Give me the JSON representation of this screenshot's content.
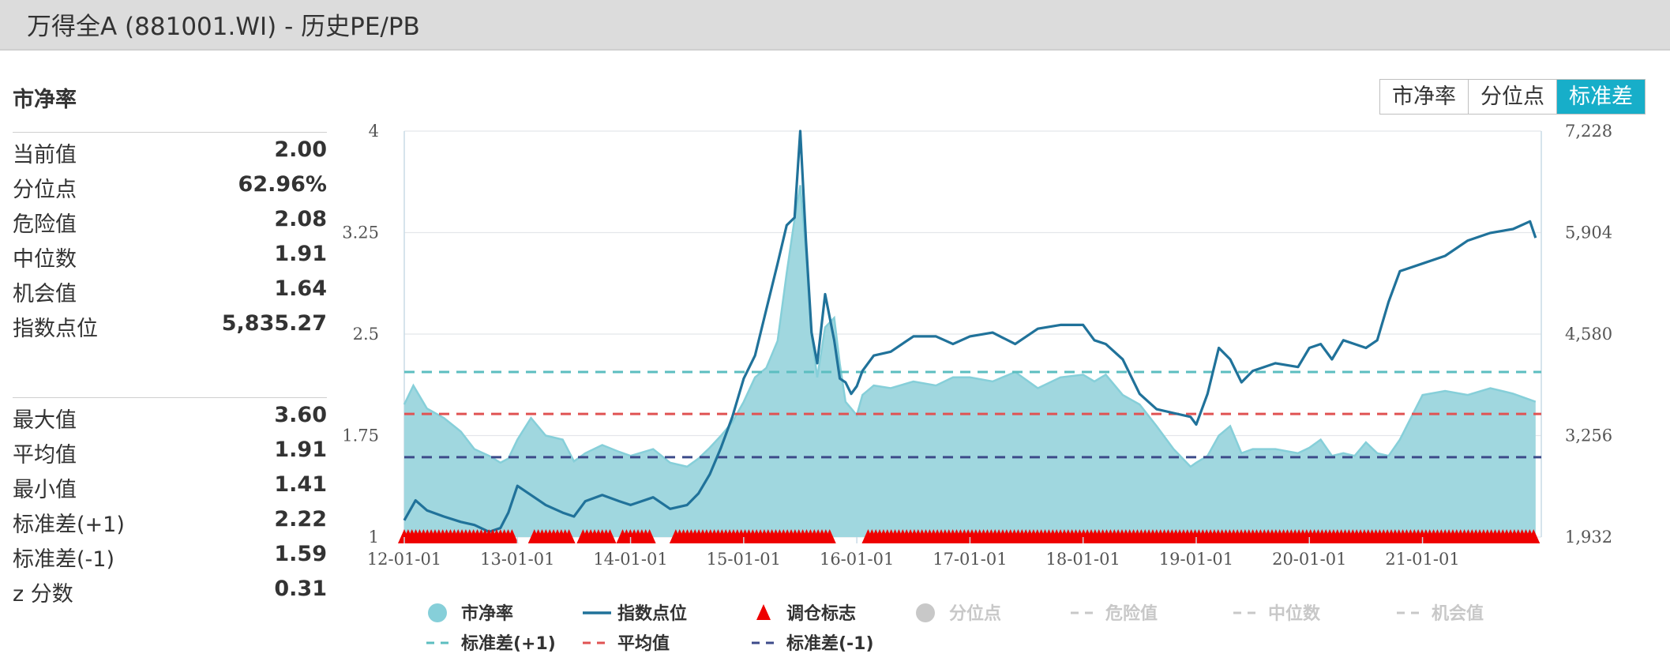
{
  "header": {
    "title": "万得全A (881001.WI) - 历史PE/PB"
  },
  "panel": {
    "title": "市净率",
    "stats_top": [
      {
        "label": "当前值",
        "value": "2.00"
      },
      {
        "label": "分位点",
        "value": "62.96%"
      },
      {
        "label": "危险值",
        "value": "2.08"
      },
      {
        "label": "中位数",
        "value": "1.91"
      },
      {
        "label": "机会值",
        "value": "1.64"
      },
      {
        "label": "指数点位",
        "value": "5,835.27"
      }
    ],
    "stats_bottom": [
      {
        "label": "最大值",
        "value": "3.60"
      },
      {
        "label": "平均值",
        "value": "1.91"
      },
      {
        "label": "最小值",
        "value": "1.41"
      },
      {
        "label": "标准差(+1)",
        "value": "2.22"
      },
      {
        "label": "标准差(-1)",
        "value": "1.59"
      },
      {
        "label": "z 分数",
        "value": "0.31"
      }
    ]
  },
  "tabs": [
    {
      "label": "市净率",
      "active": false
    },
    {
      "label": "分位点",
      "active": false
    },
    {
      "label": "标准差",
      "active": true
    }
  ],
  "colors": {
    "pb_fill": "#a0d7df",
    "pb_line": "#86cfd9",
    "index_line": "#20729a",
    "marker": "#ee0000",
    "std_plus": "#5cbec0",
    "mean": "#e05353",
    "std_minus": "#3d4b8a",
    "legend_disabled": "#c8c8c8"
  },
  "chart_data": {
    "type": "area",
    "x_tick_labels": [
      "12-01-01",
      "13-01-01",
      "14-01-01",
      "15-01-01",
      "16-01-01",
      "17-01-01",
      "18-01-01",
      "19-01-01",
      "20-01-01",
      "21-01-01"
    ],
    "x_range": [
      2012.0,
      2022.05
    ],
    "y_left": {
      "range": [
        1,
        4
      ],
      "ticks": [
        "1",
        "1.75",
        "2.5",
        "3.25",
        "4"
      ]
    },
    "y_right": {
      "range": [
        1932,
        7228
      ],
      "ticks": [
        "1,932",
        "3,256",
        "4,580",
        "5,904",
        "7,228"
      ]
    },
    "reference_lines": [
      {
        "name": "标准差(+1)",
        "value": 2.22
      },
      {
        "name": "平均值",
        "value": 1.91
      },
      {
        "name": "标准差(-1)",
        "value": 1.59
      }
    ],
    "series": [
      {
        "name": "市净率",
        "axis": "left",
        "x": [
          2012.0,
          2012.08,
          2012.2,
          2012.35,
          2012.5,
          2012.62,
          2012.75,
          2012.85,
          2012.92,
          2013.0,
          2013.12,
          2013.25,
          2013.4,
          2013.5,
          2013.6,
          2013.75,
          2013.9,
          2014.0,
          2014.2,
          2014.35,
          2014.5,
          2014.6,
          2014.7,
          2014.8,
          2014.9,
          2015.0,
          2015.1,
          2015.2,
          2015.3,
          2015.38,
          2015.45,
          2015.5,
          2015.55,
          2015.6,
          2015.65,
          2015.72,
          2015.8,
          2015.85,
          2015.9,
          2015.95,
          2016.0,
          2016.05,
          2016.15,
          2016.3,
          2016.5,
          2016.7,
          2016.85,
          2017.0,
          2017.2,
          2017.4,
          2017.6,
          2017.8,
          2018.0,
          2018.1,
          2018.2,
          2018.35,
          2018.5,
          2018.65,
          2018.8,
          2018.95,
          2019.0,
          2019.1,
          2019.2,
          2019.3,
          2019.4,
          2019.5,
          2019.7,
          2019.9,
          2020.0,
          2020.1,
          2020.2,
          2020.3,
          2020.4,
          2020.5,
          2020.6,
          2020.7,
          2020.8,
          2021.0,
          2021.2,
          2021.4,
          2021.6,
          2021.8,
          2022.0
        ],
        "y": [
          1.98,
          2.12,
          1.95,
          1.88,
          1.78,
          1.65,
          1.6,
          1.55,
          1.58,
          1.72,
          1.88,
          1.75,
          1.72,
          1.56,
          1.62,
          1.68,
          1.63,
          1.6,
          1.65,
          1.55,
          1.52,
          1.58,
          1.66,
          1.75,
          1.85,
          2.0,
          2.18,
          2.25,
          2.45,
          2.95,
          3.35,
          3.6,
          3.1,
          2.5,
          2.18,
          2.55,
          2.62,
          2.28,
          2.0,
          1.95,
          1.9,
          2.05,
          2.12,
          2.1,
          2.15,
          2.12,
          2.18,
          2.18,
          2.15,
          2.22,
          2.1,
          2.18,
          2.2,
          2.15,
          2.2,
          2.05,
          1.98,
          1.82,
          1.65,
          1.52,
          1.55,
          1.6,
          1.75,
          1.82,
          1.62,
          1.65,
          1.65,
          1.62,
          1.66,
          1.72,
          1.6,
          1.62,
          1.6,
          1.7,
          1.62,
          1.6,
          1.72,
          2.05,
          2.08,
          2.05,
          2.1,
          2.06,
          2.0
        ]
      },
      {
        "name": "指数点位",
        "axis": "right",
        "x": [
          2012.0,
          2012.1,
          2012.2,
          2012.35,
          2012.5,
          2012.62,
          2012.75,
          2012.85,
          2012.92,
          2013.0,
          2013.12,
          2013.25,
          2013.4,
          2013.5,
          2013.6,
          2013.75,
          2013.9,
          2014.0,
          2014.2,
          2014.35,
          2014.5,
          2014.6,
          2014.7,
          2014.8,
          2014.9,
          2015.0,
          2015.1,
          2015.2,
          2015.3,
          2015.38,
          2015.45,
          2015.5,
          2015.55,
          2015.6,
          2015.65,
          2015.72,
          2015.8,
          2015.85,
          2015.9,
          2015.95,
          2016.0,
          2016.05,
          2016.15,
          2016.3,
          2016.5,
          2016.7,
          2016.85,
          2017.0,
          2017.2,
          2017.4,
          2017.6,
          2017.8,
          2018.0,
          2018.1,
          2018.2,
          2018.35,
          2018.5,
          2018.65,
          2018.8,
          2018.95,
          2019.0,
          2019.1,
          2019.2,
          2019.3,
          2019.4,
          2019.5,
          2019.7,
          2019.9,
          2020.0,
          2020.1,
          2020.2,
          2020.3,
          2020.4,
          2020.5,
          2020.6,
          2020.7,
          2020.8,
          2021.0,
          2021.2,
          2021.4,
          2021.6,
          2021.8,
          2021.95,
          2022.0
        ],
        "y": [
          2150,
          2410,
          2280,
          2200,
          2130,
          2090,
          2000,
          2050,
          2250,
          2600,
          2480,
          2350,
          2250,
          2200,
          2400,
          2480,
          2400,
          2350,
          2450,
          2300,
          2350,
          2500,
          2750,
          3100,
          3500,
          4000,
          4300,
          4900,
          5500,
          6000,
          6100,
          7228,
          5800,
          4600,
          4200,
          5100,
          4500,
          4000,
          3950,
          3800,
          3900,
          4100,
          4300,
          4350,
          4550,
          4550,
          4450,
          4550,
          4600,
          4450,
          4650,
          4700,
          4700,
          4500,
          4450,
          4250,
          3800,
          3600,
          3550,
          3500,
          3400,
          3800,
          4400,
          4250,
          3950,
          4100,
          4200,
          4150,
          4400,
          4450,
          4250,
          4500,
          4450,
          4400,
          4500,
          5000,
          5400,
          5500,
          5600,
          5800,
          5900,
          5950,
          6050,
          5835
        ]
      },
      {
        "name": "调仓标志",
        "axis": "left",
        "value": 1.0,
        "x_ranges": [
          [
            2012.0,
            2012.98
          ],
          [
            2013.15,
            2013.46
          ],
          [
            2013.58,
            2013.85
          ],
          [
            2013.93,
            2014.19
          ],
          [
            2014.4,
            2015.78
          ],
          [
            2016.1,
            2022.0
          ]
        ]
      }
    ],
    "legend": [
      {
        "name": "市净率",
        "enabled": true
      },
      {
        "name": "指数点位",
        "enabled": true
      },
      {
        "name": "调仓标志",
        "enabled": true
      },
      {
        "name": "分位点",
        "enabled": false
      },
      {
        "name": "危险值",
        "enabled": false
      },
      {
        "name": "中位数",
        "enabled": false
      },
      {
        "name": "机会值",
        "enabled": false
      },
      {
        "name": "标准差(+1)",
        "enabled": true
      },
      {
        "name": "平均值",
        "enabled": true
      },
      {
        "name": "标准差(-1)",
        "enabled": true
      }
    ],
    "grid": true,
    "legend_position": "bottom"
  }
}
